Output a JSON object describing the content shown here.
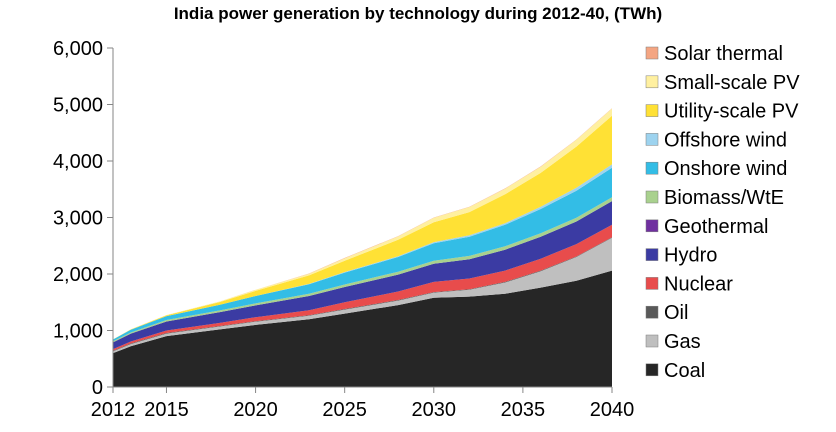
{
  "chart_data": {
    "type": "area",
    "stacked": true,
    "title": "India power generation by technology during 2012-40, (TWh)",
    "xlabel": "",
    "ylabel": "",
    "x": [
      2012,
      2013,
      2015,
      2018,
      2020,
      2023,
      2025,
      2028,
      2030,
      2032,
      2034,
      2036,
      2038,
      2040
    ],
    "xlim": [
      2012,
      2040
    ],
    "ylim": [
      0,
      6000
    ],
    "x_ticks": [
      "2012",
      "2015",
      "2020",
      "2025",
      "2030",
      "2035",
      "2040"
    ],
    "x_tick_values": [
      2012,
      2015,
      2020,
      2025,
      2030,
      2035,
      2040
    ],
    "y_ticks": [
      "0",
      "1,000",
      "2,000",
      "3,000",
      "4,000",
      "5,000",
      "6,000"
    ],
    "y_tick_values": [
      0,
      1000,
      2000,
      3000,
      4000,
      5000,
      6000
    ],
    "grid": false,
    "legend_position": "right",
    "series": [
      {
        "name": "Coal",
        "color": "#262626",
        "values": [
          600,
          720,
          900,
          1020,
          1100,
          1200,
          1300,
          1450,
          1580,
          1600,
          1650,
          1760,
          1880,
          2060
        ]
      },
      {
        "name": "Gas",
        "color": "#bfbfbf",
        "values": [
          30,
          40,
          45,
          50,
          55,
          60,
          70,
          80,
          90,
          120,
          200,
          290,
          420,
          580
        ]
      },
      {
        "name": "Oil",
        "color": "#595959",
        "values": [
          10,
          10,
          10,
          10,
          10,
          10,
          10,
          10,
          10,
          10,
          10,
          10,
          10,
          10
        ]
      },
      {
        "name": "Nuclear",
        "color": "#e84c4c",
        "values": [
          30,
          35,
          45,
          55,
          70,
          90,
          120,
          150,
          180,
          190,
          200,
          210,
          220,
          220
        ]
      },
      {
        "name": "Geothermal",
        "color": "#7030a0",
        "values": [
          0,
          0,
          0,
          0,
          0,
          0,
          0,
          0,
          0,
          0,
          0,
          0,
          0,
          0
        ]
      },
      {
        "name": "Hydro",
        "color": "#3b3ba3",
        "values": [
          120,
          140,
          160,
          190,
          210,
          250,
          270,
          300,
          320,
          340,
          370,
          390,
          400,
          420
        ]
      },
      {
        "name": "Biomass/WtE",
        "color": "#a9d18e",
        "values": [
          20,
          20,
          25,
          30,
          35,
          40,
          45,
          50,
          55,
          60,
          60,
          60,
          65,
          70
        ]
      },
      {
        "name": "Onshore wind",
        "color": "#33bde6",
        "values": [
          30,
          50,
          70,
          100,
          130,
          170,
          210,
          260,
          310,
          340,
          380,
          430,
          480,
          520
        ]
      },
      {
        "name": "Offshore wind",
        "color": "#9dd3ef",
        "values": [
          0,
          0,
          0,
          0,
          0,
          5,
          10,
          15,
          20,
          25,
          30,
          40,
          50,
          60
        ]
      },
      {
        "name": "Utility-scale PV",
        "color": "#ffe135",
        "values": [
          2,
          5,
          15,
          50,
          90,
          150,
          200,
          290,
          350,
          410,
          510,
          600,
          730,
          860
        ]
      },
      {
        "name": "Small-scale PV",
        "color": "#fff0a0",
        "values": [
          0,
          2,
          5,
          10,
          20,
          30,
          45,
          60,
          80,
          90,
          100,
          110,
          120,
          130
        ]
      },
      {
        "name": "Solar thermal",
        "color": "#f4a582",
        "values": [
          0,
          0,
          0,
          0,
          2,
          3,
          5,
          5,
          5,
          5,
          5,
          5,
          5,
          5
        ]
      }
    ],
    "legend_order": [
      "Solar thermal",
      "Small-scale PV",
      "Utility-scale PV",
      "Offshore wind",
      "Onshore wind",
      "Biomass/WtE",
      "Geothermal",
      "Hydro",
      "Nuclear",
      "Oil",
      "Gas",
      "Coal"
    ]
  }
}
